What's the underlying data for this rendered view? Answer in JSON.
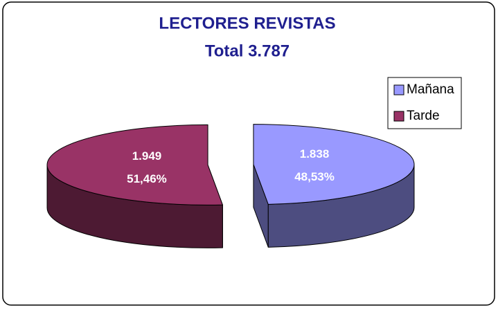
{
  "chart_data": {
    "type": "pie3d",
    "title": "LECTORES REVISTAS",
    "subtitle": "Total 3.787",
    "categories": [
      "Mañana",
      "Tarde"
    ],
    "values": [
      1838,
      1949
    ],
    "value_labels": [
      "1.838",
      "1.949"
    ],
    "percentages": [
      48.53,
      51.46
    ],
    "percentage_labels": [
      "48,53%",
      "51,46%"
    ],
    "colors": [
      "#9999ff",
      "#993366"
    ],
    "legend": "right"
  }
}
